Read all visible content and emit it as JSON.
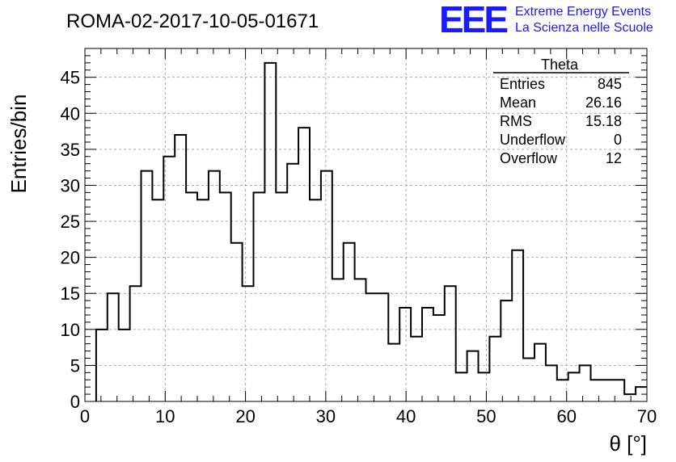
{
  "chart_data": {
    "type": "bar",
    "title": "ROMA-02-2017-10-05-01671",
    "xlabel": "θ [°]",
    "ylabel": "Entries/bin",
    "xlim": [
      0,
      70
    ],
    "ylim": [
      0,
      49
    ],
    "x_ticks": [
      0,
      10,
      20,
      30,
      40,
      50,
      60,
      70
    ],
    "y_ticks": [
      0,
      5,
      10,
      15,
      20,
      25,
      30,
      35,
      40,
      45
    ],
    "grid": true,
    "bin_width": 1.4,
    "x_start": 1.4,
    "values": [
      10,
      15,
      10,
      16,
      32,
      28,
      34,
      37,
      29,
      28,
      32,
      29,
      22,
      16,
      29,
      47,
      29,
      33,
      38,
      28,
      32,
      17,
      22,
      17,
      15,
      15,
      8,
      13,
      9,
      13,
      12,
      16,
      4,
      7,
      4,
      9,
      14,
      21,
      6,
      8,
      5,
      3,
      4,
      5,
      3,
      3,
      3,
      1,
      2
    ]
  },
  "stats": {
    "name": "Theta",
    "rows": [
      {
        "label": "Entries",
        "value": "845"
      },
      {
        "label": "Mean",
        "value": "26.16"
      },
      {
        "label": "RMS",
        "value": "15.18"
      },
      {
        "label": "Underflow",
        "value": "0"
      },
      {
        "label": "Overflow",
        "value": "12"
      }
    ]
  },
  "logo": {
    "mark": "EEE",
    "line1": "Extreme Energy Events",
    "line2": "La Scienza nelle Scuole"
  },
  "colors": {
    "logo": "#1a1aff",
    "grid": "#aaaaaa",
    "line": "#000000"
  }
}
